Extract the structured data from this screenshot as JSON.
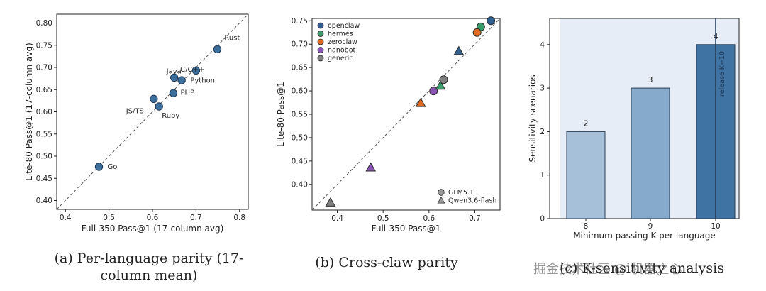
{
  "captions": {
    "a": "(a) Per-language parity (17-column mean)",
    "b": "(b) Cross-claw parity",
    "c": "(c) K-sensitivity analysis"
  },
  "watermark": "掘金技术社区 @ 机器之心",
  "chart_data": [
    {
      "type": "scatter",
      "title": "",
      "xlabel": "Full-350 Pass@1 (17-column avg)",
      "ylabel": "Lite-80 Pass@1 (17-column avg)",
      "xlim": [
        0.38,
        0.82
      ],
      "ylim": [
        0.38,
        0.82
      ],
      "xticks": [
        "0.4",
        "0.5",
        "0.6",
        "0.7",
        "0.8"
      ],
      "yticks": [
        "0.40",
        "0.45",
        "0.50",
        "0.55",
        "0.60",
        "0.65",
        "0.70",
        "0.75",
        "0.80"
      ],
      "grid": false,
      "diagonal": true,
      "point_color": "#3d6f9c",
      "points": [
        {
          "label": "Go",
          "x": 0.477,
          "y": 0.476
        },
        {
          "label": "JS/TS",
          "x": 0.603,
          "y": 0.629
        },
        {
          "label": "Ruby",
          "x": 0.615,
          "y": 0.612
        },
        {
          "label": "PHP",
          "x": 0.648,
          "y": 0.642
        },
        {
          "label": "Java",
          "x": 0.65,
          "y": 0.677
        },
        {
          "label": "C/C++",
          "x": 0.667,
          "y": 0.671
        },
        {
          "label": "Python",
          "x": 0.7,
          "y": 0.693
        },
        {
          "label": "Rust",
          "x": 0.749,
          "y": 0.741
        }
      ]
    },
    {
      "type": "scatter",
      "title": "",
      "xlabel": "Full-350 Pass@1",
      "ylabel": "Lite-80 Pass@1",
      "xlim": [
        0.345,
        0.755
      ],
      "ylim": [
        0.345,
        0.755
      ],
      "xticks": [
        "0.4",
        "0.5",
        "0.6",
        "0.7"
      ],
      "yticks": [
        "0.40",
        "0.45",
        "0.50",
        "0.55",
        "0.60",
        "0.65",
        "0.70",
        "0.75"
      ],
      "grid": false,
      "diagonal": true,
      "legend_position": "top-left",
      "marker_legend_position": "bottom-right",
      "series": [
        {
          "name": "openclaw",
          "color": "#2f5f8f"
        },
        {
          "name": "hermes",
          "color": "#3a9a6a"
        },
        {
          "name": "zeroclaw",
          "color": "#e06a22"
        },
        {
          "name": "nanobot",
          "color": "#8a55b5"
        },
        {
          "name": "generic",
          "color": "#808080"
        }
      ],
      "markers": [
        {
          "name": "GLM5.1",
          "shape": "circle"
        },
        {
          "name": "Qwen3.6-flash",
          "shape": "triangle"
        }
      ],
      "points": [
        {
          "series": "openclaw",
          "marker": "circle",
          "x": 0.735,
          "y": 0.75
        },
        {
          "series": "hermes",
          "marker": "circle",
          "x": 0.713,
          "y": 0.737
        },
        {
          "series": "zeroclaw",
          "marker": "circle",
          "x": 0.705,
          "y": 0.725
        },
        {
          "series": "generic",
          "marker": "circle",
          "x": 0.632,
          "y": 0.624
        },
        {
          "series": "nanobot",
          "marker": "circle",
          "x": 0.61,
          "y": 0.6
        },
        {
          "series": "openclaw",
          "marker": "triangle",
          "x": 0.665,
          "y": 0.685
        },
        {
          "series": "hermes",
          "marker": "triangle",
          "x": 0.625,
          "y": 0.611
        },
        {
          "series": "zeroclaw",
          "marker": "triangle",
          "x": 0.582,
          "y": 0.574
        },
        {
          "series": "nanobot",
          "marker": "triangle",
          "x": 0.473,
          "y": 0.436
        },
        {
          "series": "generic",
          "marker": "triangle",
          "x": 0.385,
          "y": 0.361
        }
      ]
    },
    {
      "type": "bar",
      "title": "",
      "xlabel": "Minimum passing K per language",
      "ylabel": "Sensitivity scenarios",
      "categories": [
        "8",
        "9",
        "10"
      ],
      "values": [
        2,
        3,
        4
      ],
      "data_labels": [
        "2",
        "3",
        "4"
      ],
      "ylim": [
        0,
        4.6
      ],
      "yticks": [
        "0",
        "1",
        "2",
        "3",
        "4"
      ],
      "grid": false,
      "background_color": "#e6edf7",
      "bar_colors": [
        "#a7c0da",
        "#86aacb",
        "#3f73a3"
      ],
      "annotation": {
        "text": "release K=10",
        "x": "10"
      }
    }
  ]
}
